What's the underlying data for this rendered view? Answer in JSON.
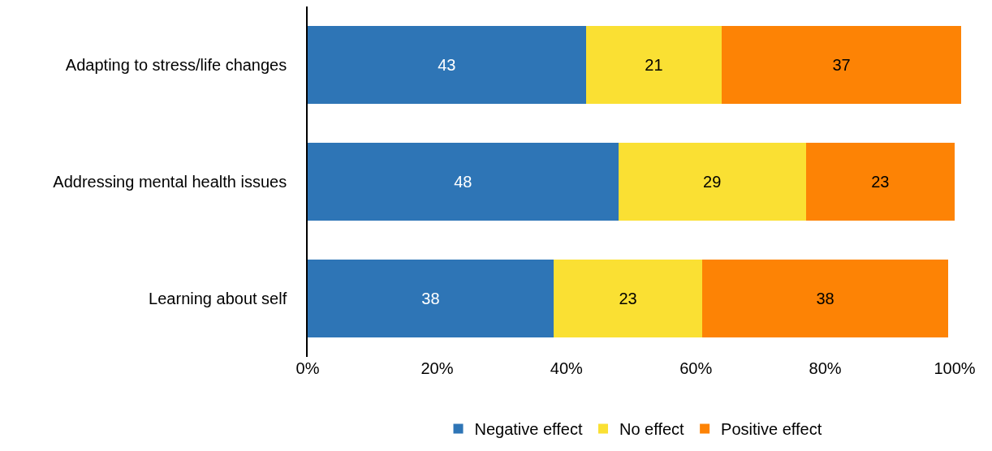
{
  "chart_data": {
    "type": "bar",
    "orientation": "horizontal",
    "stacked": true,
    "data_labels": true,
    "grid": false,
    "legend": "bottom",
    "categories": [
      "Adapting to stress/life changes",
      "Addressing mental health issues",
      "Learning about self"
    ],
    "series": [
      {
        "name": "Negative effect",
        "color": "#2e75b6",
        "values": [
          43,
          48,
          38
        ]
      },
      {
        "name": "No effect",
        "color": "#fae033",
        "values": [
          21,
          29,
          23
        ]
      },
      {
        "name": "Positive effect",
        "color": "#fd8305",
        "values": [
          37,
          23,
          38
        ]
      }
    ],
    "xlim": [
      0,
      101
    ],
    "xticks": [
      {
        "value": 0,
        "label": "0%"
      },
      {
        "value": 20,
        "label": "20%"
      },
      {
        "value": 40,
        "label": "40%"
      },
      {
        "value": 60,
        "label": "60%"
      },
      {
        "value": 80,
        "label": "80%"
      },
      {
        "value": 100,
        "label": "100%"
      }
    ]
  }
}
